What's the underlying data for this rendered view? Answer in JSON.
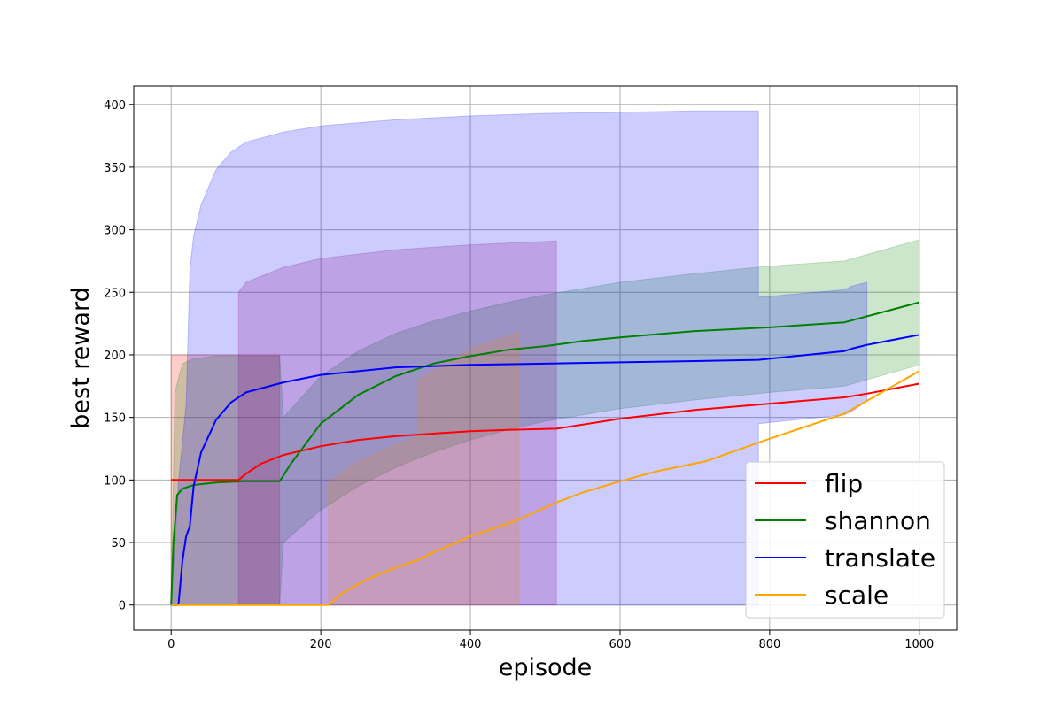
{
  "chart_data": {
    "type": "line",
    "title": "",
    "xlabel": "episode",
    "ylabel": "best reward",
    "xlim": [
      -50,
      1050
    ],
    "ylim": [
      -20,
      415
    ],
    "xticks": [
      0,
      200,
      400,
      600,
      800,
      1000
    ],
    "yticks": [
      0,
      50,
      100,
      150,
      200,
      250,
      300,
      350,
      400
    ],
    "grid": true,
    "legend_position": "bottom-right",
    "series": [
      {
        "name": "flip",
        "color": "#ff0000",
        "x": [
          0,
          90,
          100,
          120,
          150,
          200,
          250,
          300,
          350,
          400,
          450,
          515,
          600,
          700,
          800,
          900,
          930,
          1000
        ],
        "y": [
          100,
          100,
          105,
          113,
          120,
          127,
          132,
          135,
          137,
          139,
          140,
          141,
          149,
          156,
          161,
          166,
          169,
          177
        ],
        "band_color": "#ff0000",
        "band_alpha": 0.2,
        "band": {
          "x": [
            0,
            145,
            145
          ],
          "upper": [
            200,
            200,
            0
          ],
          "lower": [
            0,
            0,
            0
          ]
        }
      },
      {
        "name": "shannon",
        "color": "#008000",
        "x": [
          0,
          3,
          8,
          15,
          30,
          60,
          100,
          145,
          160,
          200,
          250,
          300,
          350,
          400,
          450,
          500,
          550,
          600,
          700,
          800,
          900,
          1000
        ],
        "y": [
          0,
          50,
          88,
          93,
          96,
          98,
          99,
          99,
          113,
          145,
          168,
          183,
          193,
          199,
          204,
          207,
          211,
          214,
          219,
          222,
          226,
          242
        ],
        "band_color": "#008000",
        "band_alpha": 0.2,
        "band": {
          "x": [
            0,
            5,
            15,
            30,
            60,
            100,
            145,
            150,
            200,
            250,
            300,
            350,
            400,
            450,
            500,
            600,
            700,
            800,
            900,
            1000
          ],
          "upper": [
            0,
            170,
            193,
            197,
            199,
            199,
            199,
            150,
            183,
            203,
            217,
            227,
            235,
            242,
            248,
            258,
            265,
            271,
            275,
            292
          ],
          "lower": [
            0,
            0,
            0,
            0,
            0,
            0,
            0,
            50,
            76,
            95,
            110,
            122,
            132,
            140,
            147,
            157,
            164,
            170,
            175,
            192
          ]
        }
      },
      {
        "name": "translate",
        "color": "#0000ff",
        "x": [
          0,
          9,
          10,
          15,
          20,
          25,
          30,
          40,
          60,
          80,
          100,
          150,
          200,
          300,
          400,
          500,
          600,
          700,
          785,
          900,
          910,
          930,
          1000
        ],
        "y": [
          0,
          0,
          2,
          35,
          55,
          63,
          95,
          122,
          148,
          162,
          170,
          178,
          184,
          190,
          192,
          193,
          194,
          195,
          196,
          203,
          205,
          208,
          216
        ],
        "band_color": "#0000ff",
        "band_alpha": 0.2,
        "band": {
          "x": [
            0,
            10,
            20,
            25,
            30,
            40,
            60,
            80,
            100,
            150,
            200,
            300,
            400,
            500,
            600,
            700,
            785,
            785,
            900,
            910,
            930,
            930
          ],
          "upper": [
            0,
            100,
            160,
            268,
            295,
            320,
            348,
            362,
            370,
            378,
            383,
            388,
            391,
            393,
            394,
            395,
            395,
            246,
            252,
            255,
            258,
            258
          ],
          "lower": [
            0,
            0,
            0,
            0,
            0,
            0,
            0,
            0,
            0,
            0,
            0,
            0,
            0,
            0,
            0,
            0,
            0,
            145,
            152,
            155,
            163,
            163
          ]
        }
      },
      {
        "name": "scale",
        "color": "#ffa500",
        "x": [
          0,
          210,
          230,
          260,
          300,
          330,
          350,
          400,
          450,
          470,
          515,
          550,
          600,
          650,
          715,
          800,
          900,
          1000
        ],
        "y": [
          0,
          0,
          10,
          20,
          30,
          36,
          42,
          55,
          65,
          70,
          82,
          90,
          99,
          107,
          115,
          133,
          153,
          187
        ],
        "band_color": "#ffa500",
        "band_alpha": 0.2,
        "band": {
          "x": [
            210,
            210,
            250,
            300,
            330,
            330,
            400,
            465,
            465
          ],
          "upper": [
            0,
            98,
            115,
            128,
            135,
            180,
            205,
            218,
            0
          ],
          "lower": [
            0,
            0,
            0,
            0,
            0,
            0,
            0,
            0,
            0
          ]
        }
      }
    ],
    "extra_bands": [
      {
        "color": "#800080",
        "alpha": 0.2,
        "x": [
          90,
          90,
          100,
          150,
          200,
          300,
          400,
          515,
          515
        ],
        "upper": [
          0,
          250,
          258,
          270,
          277,
          284,
          288,
          291,
          0
        ],
        "lower": [
          0,
          0,
          0,
          0,
          0,
          0,
          0,
          0,
          0
        ]
      }
    ]
  }
}
